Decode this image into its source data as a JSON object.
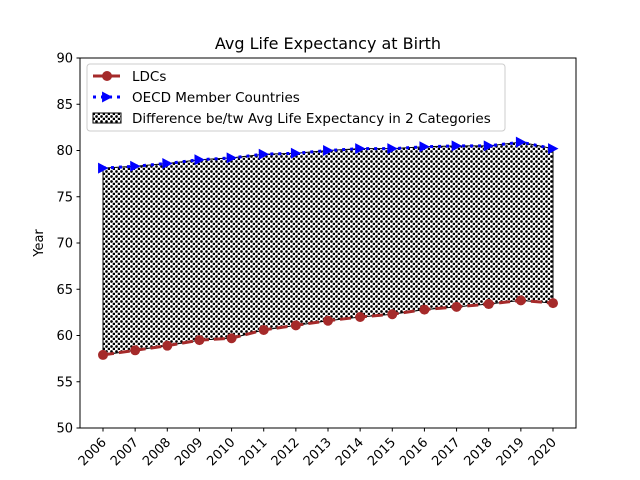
{
  "chart_data": {
    "type": "line",
    "title": "Avg Life Expectancy at Birth",
    "xlabel": "",
    "ylabel": "Year",
    "ylim": [
      50,
      90
    ],
    "yticks": [
      50,
      55,
      60,
      65,
      70,
      75,
      80,
      85,
      90
    ],
    "categories": [
      "2006",
      "2007",
      "2008",
      "2009",
      "2010",
      "2011",
      "2012",
      "2013",
      "2014",
      "2015",
      "2016",
      "2017",
      "2018",
      "2019",
      "2020"
    ],
    "series": [
      {
        "name": "LDCs",
        "color": "#a52a2a",
        "marker": "circle",
        "linestyle": "dashed",
        "values": [
          57.9,
          58.4,
          58.9,
          59.5,
          59.7,
          60.6,
          61.1,
          61.6,
          62.0,
          62.3,
          62.8,
          63.1,
          63.4,
          63.8,
          63.5
        ]
      },
      {
        "name": "OECD Member Countries",
        "color": "#0000ff",
        "marker": "triangle-right",
        "linestyle": "dotted",
        "values": [
          78.1,
          78.3,
          78.6,
          79.0,
          79.2,
          79.6,
          79.7,
          80.0,
          80.2,
          80.2,
          80.4,
          80.5,
          80.5,
          80.9,
          80.2
        ]
      }
    ],
    "fill_between": {
      "name": "Difference be/tw Avg Life Expectancy in 2 Categories",
      "pattern": "dots"
    },
    "legend_position": "upper-left",
    "grid": false
  }
}
